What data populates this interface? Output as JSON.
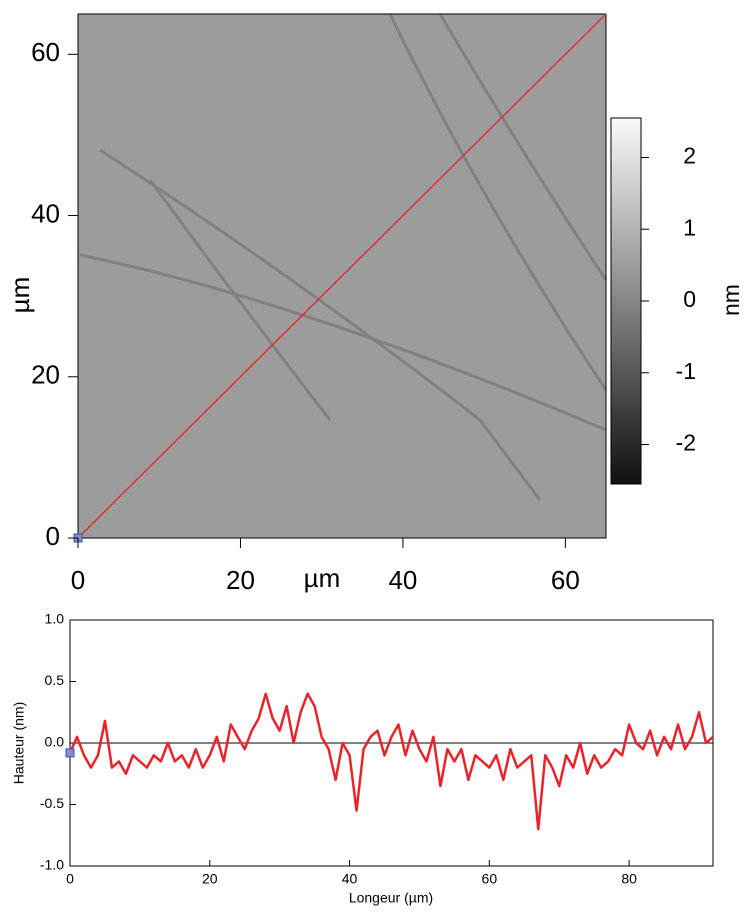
{
  "chart_data": [
    {
      "type": "image",
      "xlabel": "µm",
      "ylabel": "µm",
      "xlim": [
        0,
        65
      ],
      "ylim": [
        0,
        65
      ],
      "xticks": [
        0,
        20,
        40,
        60
      ],
      "yticks": [
        0,
        20,
        40,
        60
      ],
      "colorbar": {
        "label": "nm",
        "lim": [
          -2.55,
          2.55
        ],
        "ticks": [
          -2,
          -1,
          0,
          1,
          2
        ]
      },
      "line_color": "#e03030"
    },
    {
      "type": "line",
      "xlabel": "Longeur (µm)",
      "ylabel": "Hauteur (nm)",
      "xlim": [
        0,
        92
      ],
      "ylim": [
        -1,
        1
      ],
      "xticks": [
        0,
        20,
        40,
        60,
        80
      ],
      "yticks": [
        {
          "value": -1,
          "label": "-1.0"
        },
        {
          "value": -0.5,
          "label": "-0.5"
        },
        {
          "value": 0,
          "label": "0.0"
        },
        {
          "value": 0.5,
          "label": "0.5"
        },
        {
          "value": 1,
          "label": "1.0"
        }
      ],
      "zero_line": true,
      "x": [
        0,
        1,
        2,
        3,
        4,
        5,
        6,
        7,
        8,
        9,
        10,
        11,
        12,
        13,
        14,
        15,
        16,
        17,
        18,
        19,
        20,
        21,
        22,
        23,
        24,
        25,
        26,
        27,
        28,
        29,
        30,
        31,
        32,
        33,
        34,
        35,
        36,
        37,
        38,
        39,
        40,
        41,
        42,
        43,
        44,
        45,
        46,
        47,
        48,
        49,
        50,
        51,
        52,
        53,
        54,
        55,
        56,
        57,
        58,
        59,
        60,
        61,
        62,
        63,
        64,
        65,
        66,
        67,
        68,
        69,
        70,
        71,
        72,
        73,
        74,
        75,
        76,
        77,
        78,
        79,
        80,
        81,
        82,
        83,
        84,
        85,
        86,
        87,
        88,
        89,
        90,
        91,
        92
      ],
      "series": [
        {
          "color": "#e8242a",
          "values": [
            -0.08,
            0.05,
            -0.1,
            -0.2,
            -0.1,
            0.18,
            -0.2,
            -0.15,
            -0.25,
            -0.1,
            -0.15,
            -0.2,
            -0.1,
            -0.15,
            0.0,
            -0.15,
            -0.1,
            -0.2,
            -0.05,
            -0.2,
            -0.1,
            0.05,
            -0.15,
            0.15,
            0.05,
            -0.05,
            0.1,
            0.2,
            0.4,
            0.2,
            0.1,
            0.3,
            0.0,
            0.25,
            0.4,
            0.3,
            0.05,
            -0.05,
            -0.3,
            0.0,
            -0.1,
            -0.55,
            -0.05,
            0.05,
            0.1,
            -0.1,
            0.05,
            0.15,
            -0.1,
            0.1,
            -0.05,
            -0.15,
            0.05,
            -0.35,
            -0.05,
            -0.15,
            -0.05,
            -0.3,
            -0.1,
            -0.15,
            -0.2,
            -0.1,
            -0.3,
            -0.05,
            -0.2,
            -0.15,
            -0.1,
            -0.7,
            -0.1,
            -0.2,
            -0.35,
            -0.1,
            -0.2,
            0.0,
            -0.25,
            -0.1,
            -0.2,
            -0.15,
            -0.05,
            -0.1,
            0.15,
            0.0,
            -0.05,
            0.1,
            -0.1,
            0.05,
            -0.05,
            0.15,
            -0.05,
            0.05,
            0.25,
            0.0,
            0.05
          ]
        }
      ]
    }
  ]
}
